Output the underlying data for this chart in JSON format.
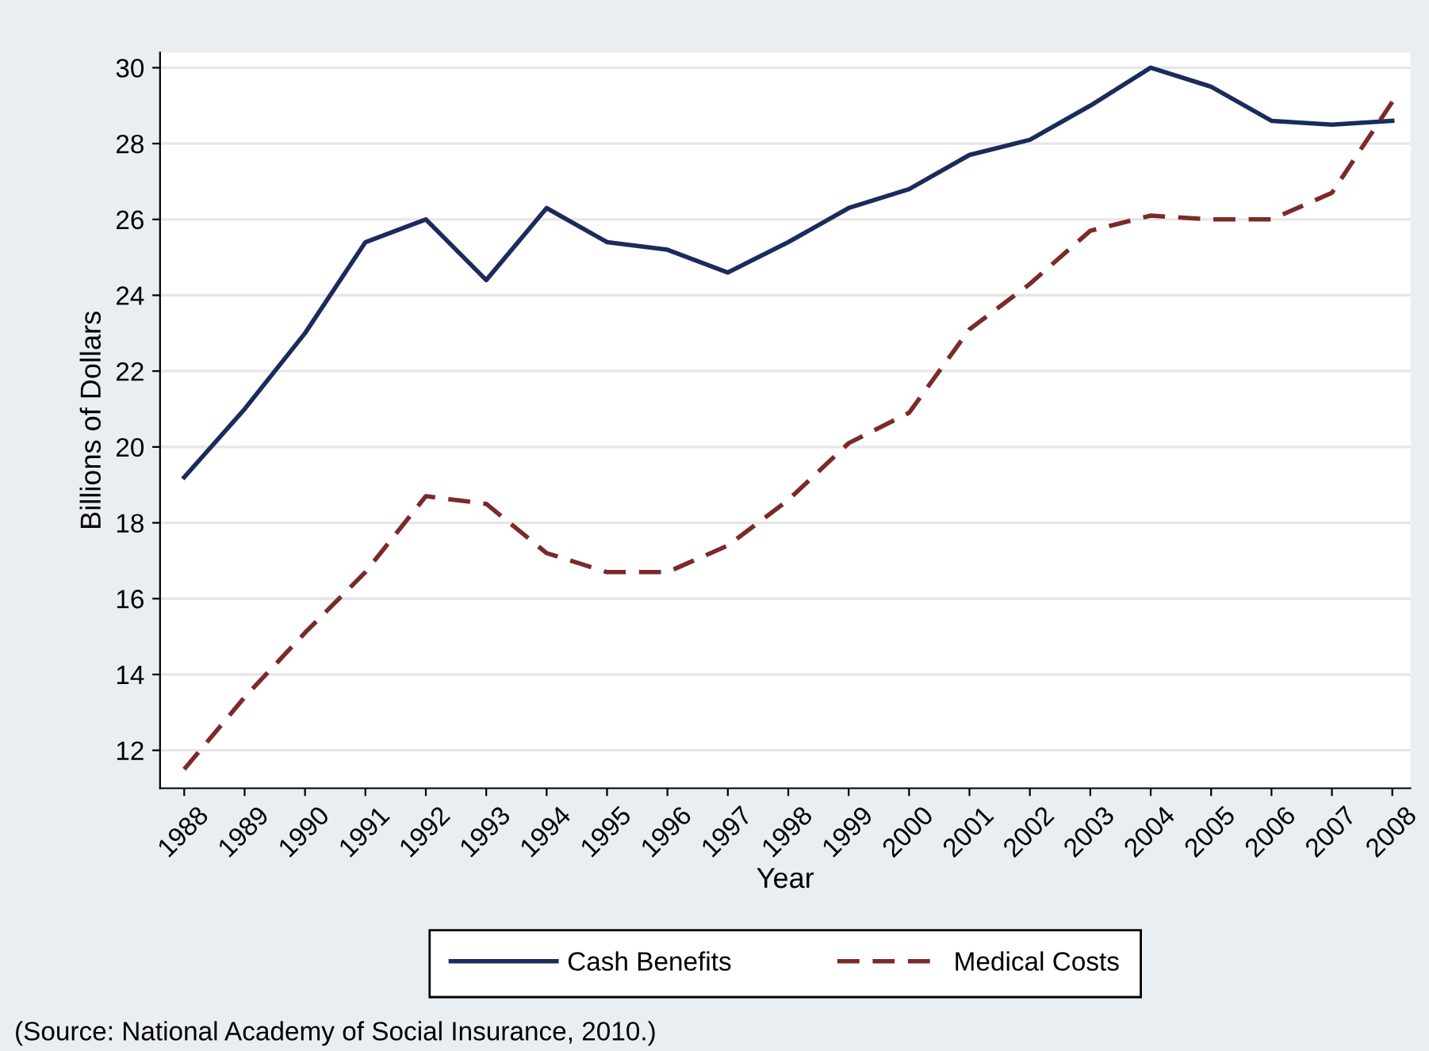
{
  "chart_data": {
    "type": "line",
    "xlabel": "Year",
    "ylabel": "Billions of Dollars",
    "x": [
      1988,
      1989,
      1990,
      1991,
      1992,
      1993,
      1994,
      1995,
      1996,
      1997,
      1998,
      1999,
      2000,
      2001,
      2002,
      2003,
      2004,
      2005,
      2006,
      2007,
      2008
    ],
    "series": [
      {
        "name": "Cash Benefits",
        "color": "#1a2b5c",
        "line_style": "solid",
        "values": [
          19.2,
          21.0,
          23.0,
          25.4,
          26.0,
          24.4,
          26.3,
          25.4,
          25.2,
          24.6,
          25.4,
          26.3,
          26.8,
          27.7,
          28.1,
          29.0,
          30.0,
          29.5,
          28.6,
          28.5,
          28.6
        ]
      },
      {
        "name": "Medical Costs",
        "color": "#7b2a2a",
        "line_style": "dashed",
        "values": [
          11.5,
          13.4,
          15.1,
          16.7,
          18.7,
          18.5,
          17.2,
          16.7,
          16.7,
          17.4,
          18.6,
          20.1,
          20.9,
          23.1,
          24.3,
          25.7,
          26.1,
          26.0,
          26.0,
          26.7,
          29.1
        ]
      }
    ],
    "xlim": [
      1987.6,
      2008.3
    ],
    "ylim": [
      11.0,
      30.4
    ],
    "xticks": [
      1988,
      1989,
      1990,
      1991,
      1992,
      1993,
      1994,
      1995,
      1996,
      1997,
      1998,
      1999,
      2000,
      2001,
      2002,
      2003,
      2004,
      2005,
      2006,
      2007,
      2008
    ],
    "yticks": [
      12,
      14,
      16,
      18,
      20,
      22,
      24,
      26,
      28,
      30
    ],
    "grid": "y",
    "legend": "bottom",
    "annotations": [
      "(Source: National Academy of Social Insurance, 2010.)"
    ]
  }
}
